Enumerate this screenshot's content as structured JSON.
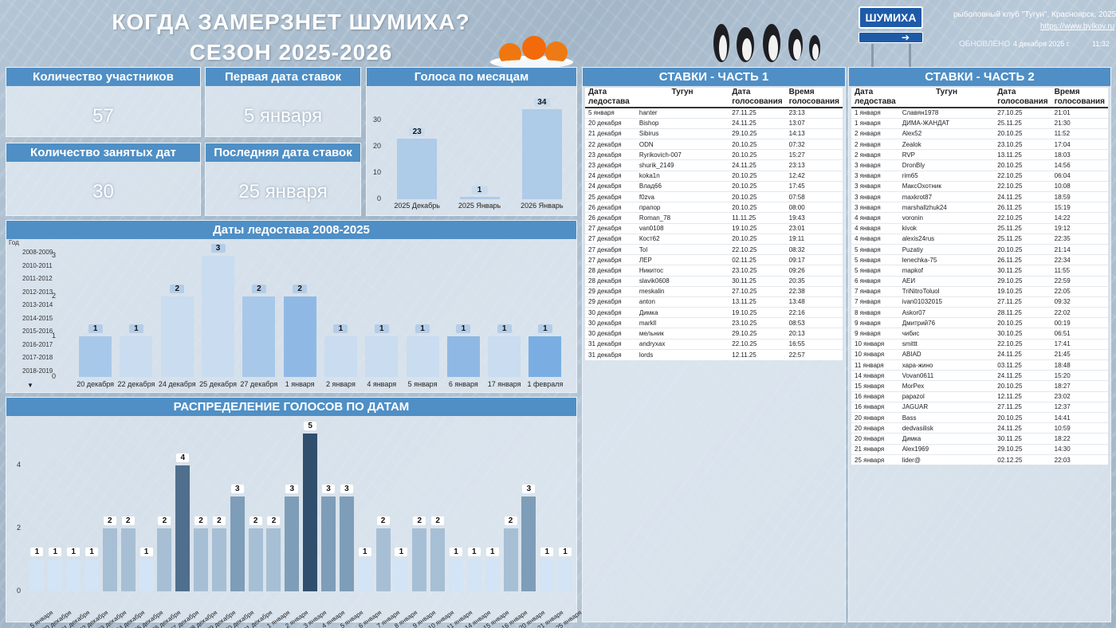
{
  "header": {
    "title_line1": "КОГДА ЗАМЕРЗНЕТ ШУМИХА?",
    "title_line2": "СЕЗОН 2025-2026",
    "sign": "ШУМИХА",
    "club": "рыболовный клуб \"Тугун\", Красноярск, 2025 г.",
    "url": "https://www.bylkov.ru",
    "updated_label": "ОБНОВЛЕНО",
    "updated_date": "4 декабря 2025 г.",
    "updated_time": "11:32"
  },
  "kpis": {
    "participants_label": "Количество участников",
    "participants_value": "57",
    "first_label": "Первая дата ставок",
    "first_value": "5 января",
    "occupied_label": "Количество занятых дат",
    "occupied_value": "30",
    "last_label": "Последняя дата ставок",
    "last_value": "25 января"
  },
  "chart_data": [
    {
      "type": "bar",
      "title": "Голоса по месяцам",
      "categories": [
        "2025 Декабрь",
        "2025 Январь",
        "2026 Январь"
      ],
      "values": [
        23,
        1,
        34
      ],
      "ylim": [
        0,
        35
      ],
      "yticks": [
        0,
        10,
        20,
        30
      ]
    },
    {
      "type": "bar",
      "title": "Даты ледостава 2008-2025",
      "categories": [
        "20 декабря",
        "22 декабря",
        "24 декабря",
        "25 декабря",
        "27 декабря",
        "1 января",
        "2 января",
        "4 января",
        "5 января",
        "6 января",
        "17 января",
        "1 февраля"
      ],
      "values": [
        1,
        1,
        2,
        3,
        2,
        2,
        1,
        1,
        1,
        1,
        1,
        1
      ],
      "ylim": [
        0,
        3
      ],
      "yticks": [
        0,
        1,
        2,
        3
      ],
      "legend_title": "Год",
      "legend": [
        "2008-2009",
        "2010-2011",
        "2011-2012",
        "2012-2013",
        "2013-2014",
        "2014-2015",
        "2015-2016",
        "2016-2017",
        "2017-2018",
        "2018-2019"
      ],
      "colors": [
        "#a8c8ea",
        "#c9dcf0",
        "#c9dcf0",
        "#c9dcf0",
        "#a8c8ea",
        "#8fb9e4",
        "#c9dcf0",
        "#c9dcf0",
        "#c9dcf0",
        "#8fb9e4",
        "#c9dcf0",
        "#7aaee2"
      ]
    },
    {
      "type": "bar",
      "title": "РАСПРЕДЕЛЕНИЕ ГОЛОСОВ ПО ДАТАМ",
      "categories": [
        "5 января",
        "20 декабря",
        "21 декабря",
        "22 декабря",
        "23 декабря",
        "24 декабря",
        "25 декабря",
        "26 декабря",
        "27 декабря",
        "28 декабря",
        "29 декабря",
        "30 декабря",
        "31 декабря",
        "1 января",
        "2 января",
        "3 января",
        "4 января",
        "5 января",
        "6 января",
        "7 января",
        "8 января",
        "9 января",
        "10 января",
        "11 января",
        "14 января",
        "15 января",
        "16 января",
        "20 января",
        "21 января",
        "25 января"
      ],
      "values": [
        1,
        1,
        1,
        1,
        2,
        2,
        1,
        2,
        4,
        2,
        2,
        3,
        2,
        2,
        3,
        5,
        3,
        3,
        1,
        2,
        1,
        2,
        2,
        1,
        1,
        1,
        2,
        3,
        1,
        1
      ],
      "ylim": [
        0,
        5
      ],
      "yticks": [
        0,
        2,
        4
      ]
    }
  ],
  "table1": {
    "title": "СТАВКИ - ЧАСТЬ 1",
    "headers": [
      "Дата ледостава",
      "Тугун",
      "Дата голосования",
      "Время голосования"
    ],
    "rows": [
      [
        "5 января",
        "hanter",
        "27.11.25",
        "23:13"
      ],
      [
        "20 декабря",
        "Bishop",
        "24.11.25",
        "13:07"
      ],
      [
        "21 декабря",
        "Sibirus",
        "29.10.25",
        "14:13"
      ],
      [
        "22 декабря",
        "ODN",
        "20.10.25",
        "07:32"
      ],
      [
        "23 декабря",
        "Ryrikovich-007",
        "20.10.25",
        "15:27"
      ],
      [
        "23 декабря",
        "shurik_2149",
        "24.11.25",
        "23:13"
      ],
      [
        "24 декабря",
        "koka1n",
        "20.10.25",
        "12:42"
      ],
      [
        "24 декабря",
        "Влад66",
        "20.10.25",
        "17:45"
      ],
      [
        "25 декабря",
        "f0zva",
        "20.10.25",
        "07:58"
      ],
      [
        "26 декабря",
        "прапор",
        "20.10.25",
        "08:00"
      ],
      [
        "26 декабря",
        "Roman_78",
        "11.11.25",
        "19:43"
      ],
      [
        "27 декабря",
        "van0108",
        "19.10.25",
        "23:01"
      ],
      [
        "27 декабря",
        "Кост62",
        "20.10.25",
        "19:11"
      ],
      [
        "27 декабря",
        "Tol",
        "22.10.25",
        "08:32"
      ],
      [
        "27 декабря",
        "ЛЕР",
        "02.11.25",
        "09:17"
      ],
      [
        "28 декабря",
        "Никитос",
        "23.10.25",
        "09:26"
      ],
      [
        "28 декабря",
        "slavik0608",
        "30.11.25",
        "20:35"
      ],
      [
        "29 декабря",
        "meskalin",
        "27.10.25",
        "22:38"
      ],
      [
        "29 декабря",
        "anton",
        "13.11.25",
        "13:48"
      ],
      [
        "30 декабря",
        "Димка",
        "19.10.25",
        "22:16"
      ],
      [
        "30 декабря",
        "markll",
        "23.10.25",
        "08:53"
      ],
      [
        "30 декабря",
        "мельник",
        "29.10.25",
        "20:13"
      ],
      [
        "31 декабря",
        "andryxax",
        "22.10.25",
        "16:55"
      ],
      [
        "31 декабря",
        "lords",
        "12.11.25",
        "22:57"
      ]
    ]
  },
  "table2": {
    "title": "СТАВКИ - ЧАСТЬ 2",
    "headers": [
      "Дата ледостава",
      "Тугун",
      "Дата голосования",
      "Время голосования"
    ],
    "rows": [
      [
        "1 января",
        "Славян1978",
        "27.10.25",
        "21:01"
      ],
      [
        "1 января",
        "ДИМА-ЖАНДАТ",
        "25.11.25",
        "21:30"
      ],
      [
        "2 января",
        "Alex52",
        "20.10.25",
        "11:52"
      ],
      [
        "2 января",
        "Zealok",
        "23.10.25",
        "17:04"
      ],
      [
        "2 января",
        "RVP",
        "13.11.25",
        "18:03"
      ],
      [
        "3 января",
        "DronBly",
        "20.10.25",
        "14:56"
      ],
      [
        "3 января",
        "rim65",
        "22.10.25",
        "06:04"
      ],
      [
        "3 января",
        "МаксОхотник",
        "22.10.25",
        "10:08"
      ],
      [
        "3 января",
        "maxkrot87",
        "24.11.25",
        "18:59"
      ],
      [
        "3 января",
        "marshallzhuk24",
        "26.11.25",
        "15:19"
      ],
      [
        "4 января",
        "voronin",
        "22.10.25",
        "14:22"
      ],
      [
        "4 января",
        "kivok",
        "25.11.25",
        "19:12"
      ],
      [
        "4 января",
        "alexis24rus",
        "25.11.25",
        "22:35"
      ],
      [
        "5 января",
        "Puzatiy",
        "20.10.25",
        "21:14"
      ],
      [
        "5 января",
        "lenechka-75",
        "26.11.25",
        "22:34"
      ],
      [
        "5 января",
        "mapkof",
        "30.11.25",
        "11:55"
      ],
      [
        "6 января",
        "АЕИ",
        "29.10.25",
        "22:59"
      ],
      [
        "7 января",
        "TriNitroToluol",
        "19.10.25",
        "22:05"
      ],
      [
        "7 января",
        "ivan01032015",
        "27.11.25",
        "09:32"
      ],
      [
        "8 января",
        "Askor07",
        "28.11.25",
        "22:02"
      ],
      [
        "9 января",
        "Дмитрий76",
        "20.10.25",
        "00:19"
      ],
      [
        "9 января",
        "чибис",
        "30.10.25",
        "06:51"
      ],
      [
        "10 января",
        "smittt",
        "22.10.25",
        "17:41"
      ],
      [
        "10 января",
        "ABIAD",
        "24.11.25",
        "21:45"
      ],
      [
        "11 января",
        "хара-жино",
        "03.11.25",
        "18:48"
      ],
      [
        "14 января",
        "Vovan0611",
        "24.11.25",
        "15:20"
      ],
      [
        "15 января",
        "MorPex",
        "20.10.25",
        "18:27"
      ],
      [
        "16 января",
        "papazol",
        "12.11.25",
        "23:02"
      ],
      [
        "16 января",
        "JAGUAR",
        "27.11.25",
        "12:37"
      ],
      [
        "20 января",
        "Bass",
        "20.10.25",
        "14:41"
      ],
      [
        "20 января",
        "dedvasilisk",
        "24.11.25",
        "10:59"
      ],
      [
        "20 января",
        "Димка",
        "30.11.25",
        "18:22"
      ],
      [
        "21 января",
        "Alex1969",
        "29.10.25",
        "14:30"
      ],
      [
        "25 января",
        "lider@",
        "02.12.25",
        "22:03"
      ]
    ]
  }
}
